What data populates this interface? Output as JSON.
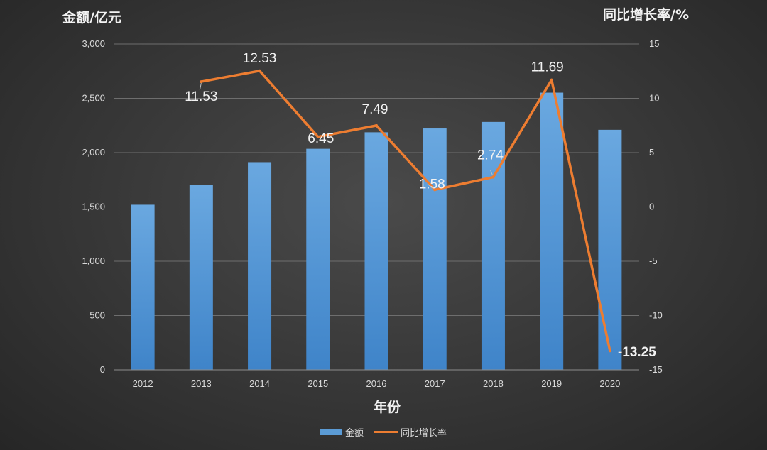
{
  "chart_data": {
    "type": "bar+line",
    "categories": [
      "2012",
      "2013",
      "2014",
      "2015",
      "2016",
      "2017",
      "2018",
      "2019",
      "2020"
    ],
    "series": [
      {
        "name": "金额",
        "type": "bar",
        "axis": "left",
        "color": "#5b9bd5",
        "values": [
          1520,
          1700,
          1912,
          2035,
          2187,
          2222,
          2282,
          2552,
          2210
        ]
      },
      {
        "name": "同比增长率",
        "type": "line",
        "axis": "right",
        "color": "#ed7d31",
        "values": [
          null,
          11.53,
          12.53,
          6.45,
          7.49,
          1.58,
          2.74,
          11.69,
          -13.25
        ],
        "labels": [
          "",
          "11.53",
          "12.53",
          "6.45",
          "7.49",
          "1.58",
          "2.74",
          "11.69",
          "-13.25"
        ],
        "highlight_color": "#ff0000"
      }
    ],
    "left_axis": {
      "title": "金额/亿元",
      "range": [
        0,
        3000
      ],
      "ticks": [
        0,
        500,
        1000,
        1500,
        2000,
        2500,
        3000
      ],
      "tick_labels": [
        "0",
        "500",
        "1,000",
        "1,500",
        "2,000",
        "2,500",
        "3,000"
      ]
    },
    "right_axis": {
      "title": "同比增长率/%",
      "range": [
        -15,
        15
      ],
      "ticks": [
        -15,
        -10,
        -5,
        0,
        5,
        10,
        15
      ],
      "tick_labels": [
        "-15",
        "-10",
        "-5",
        "0",
        "5",
        "10",
        "15"
      ]
    },
    "xlabel": "年份",
    "grid": true,
    "legend_position": "bottom"
  }
}
